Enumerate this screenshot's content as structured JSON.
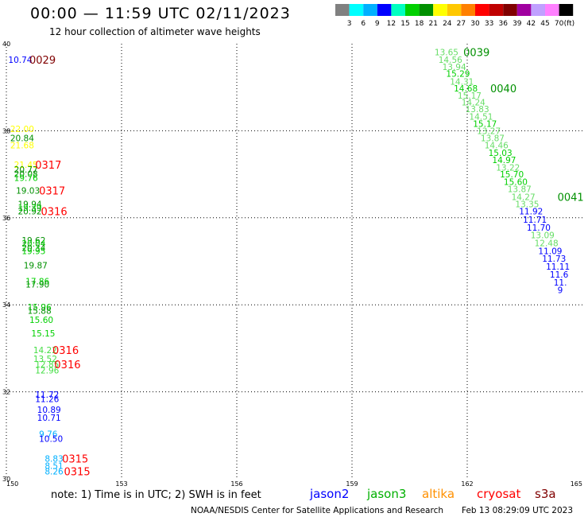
{
  "title": "00:00 — 11:59 UTC 02/11/2023",
  "subtitle": "12 hour collection of altimeter wave heights",
  "legend": {
    "unit": "(ft)",
    "colors": [
      "#808080",
      "#00ffff",
      "#00b0ff",
      "#0000ff",
      "#00ffc0",
      "#00d000",
      "#009000",
      "#ffff00",
      "#ffc800",
      "#ff8000",
      "#ff0000",
      "#c00000",
      "#800000",
      "#a000a0",
      "#c0a0ff",
      "#ff80ff",
      "#000000"
    ],
    "labels": [
      "3",
      "6",
      "9",
      "12",
      "15",
      "18",
      "21",
      "24",
      "27",
      "30",
      "33",
      "36",
      "39",
      "42",
      "45",
      "70"
    ]
  },
  "map": {
    "lon_min": 150,
    "lon_max": 165,
    "lat_min": 30,
    "lat_max": 40,
    "x_ticks": [
      "150",
      "153",
      "156",
      "159",
      "162",
      "165"
    ],
    "y_ticks": [
      "40",
      "38",
      "36",
      "34",
      "32",
      "30"
    ]
  },
  "observations": [
    {
      "t": "10.74",
      "lon": 150.05,
      "lat": 39.63,
      "c": "#0000ff"
    },
    {
      "t": "22.00",
      "lon": 150.1,
      "lat": 38.04,
      "c": "#ffff00"
    },
    {
      "t": "20.84",
      "lon": 150.1,
      "lat": 37.83,
      "c": "#009000"
    },
    {
      "t": "21.68",
      "lon": 150.1,
      "lat": 37.67,
      "c": "#ffff00"
    },
    {
      "t": "21.45",
      "lon": 150.2,
      "lat": 37.22,
      "c": "#ffff00"
    },
    {
      "t": "20.77",
      "lon": 150.2,
      "lat": 37.11,
      "c": "#009000"
    },
    {
      "t": "20.08",
      "lon": 150.2,
      "lat": 37.01,
      "c": "#009000"
    },
    {
      "t": "19.76",
      "lon": 150.2,
      "lat": 36.92,
      "c": "#00d000"
    },
    {
      "t": "19.03",
      "lon": 150.25,
      "lat": 36.63,
      "c": "#009000"
    },
    {
      "t": "19.94",
      "lon": 150.3,
      "lat": 36.32,
      "c": "#009000"
    },
    {
      "t": "19.39",
      "lon": 150.3,
      "lat": 36.23,
      "c": "#00d000"
    },
    {
      "t": "20.92",
      "lon": 150.3,
      "lat": 36.15,
      "c": "#009000"
    },
    {
      "t": "19.62",
      "lon": 150.4,
      "lat": 35.48,
      "c": "#009000"
    },
    {
      "t": "20.04",
      "lon": 150.4,
      "lat": 35.41,
      "c": "#00d000"
    },
    {
      "t": "20.34",
      "lon": 150.4,
      "lat": 35.31,
      "c": "#009000"
    },
    {
      "t": "19.95",
      "lon": 150.4,
      "lat": 35.24,
      "c": "#00d000"
    },
    {
      "t": "19.87",
      "lon": 150.45,
      "lat": 34.91,
      "c": "#009000"
    },
    {
      "t": "17.86",
      "lon": 150.5,
      "lat": 34.54,
      "c": "#00d000"
    },
    {
      "t": "17.90",
      "lon": 150.5,
      "lat": 34.47,
      "c": "#009000"
    },
    {
      "t": "15.96",
      "lon": 150.55,
      "lat": 33.95,
      "c": "#00d000"
    },
    {
      "t": "15.88",
      "lon": 150.55,
      "lat": 33.87,
      "c": "#009000"
    },
    {
      "t": "15.60",
      "lon": 150.6,
      "lat": 33.66,
      "c": "#00d000"
    },
    {
      "t": "15.15",
      "lon": 150.65,
      "lat": 33.35,
      "c": "#00d000"
    },
    {
      "t": "14.22",
      "lon": 150.7,
      "lat": 32.96,
      "c": "#44dd44"
    },
    {
      "t": "13.52",
      "lon": 150.7,
      "lat": 32.76,
      "c": "#44dd44"
    },
    {
      "t": "12.85",
      "lon": 150.75,
      "lat": 32.63,
      "c": "#44dd44"
    },
    {
      "t": "12.96",
      "lon": 150.75,
      "lat": 32.5,
      "c": "#44dd44"
    },
    {
      "t": "11.72",
      "lon": 150.75,
      "lat": 31.94,
      "c": "#0000ff"
    },
    {
      "t": "11.26",
      "lon": 150.75,
      "lat": 31.84,
      "c": "#0000ff"
    },
    {
      "t": "10.89",
      "lon": 150.8,
      "lat": 31.59,
      "c": "#0000ff"
    },
    {
      "t": "10.71",
      "lon": 150.8,
      "lat": 31.41,
      "c": "#0000ff"
    },
    {
      "t": "9.76",
      "lon": 150.85,
      "lat": 31.03,
      "c": "#00b0ff"
    },
    {
      "t": "10.50",
      "lon": 150.85,
      "lat": 30.92,
      "c": "#0000ff"
    },
    {
      "t": "8.83",
      "lon": 151.0,
      "lat": 30.47,
      "c": "#00b0ff"
    },
    {
      "t": "8.51",
      "lon": 151.0,
      "lat": 30.3,
      "c": "#00b0ff"
    },
    {
      "t": "8.26",
      "lon": 151.0,
      "lat": 30.17,
      "c": "#00b0ff"
    },
    {
      "t": "13.65",
      "lon": 161.15,
      "lat": 39.81,
      "c": "#66dd66"
    },
    {
      "t": "14.56",
      "lon": 161.25,
      "lat": 39.63,
      "c": "#66dd66"
    },
    {
      "t": "13.94",
      "lon": 161.35,
      "lat": 39.47,
      "c": "#66dd66"
    },
    {
      "t": "15.29",
      "lon": 161.45,
      "lat": 39.31,
      "c": "#00d000"
    },
    {
      "t": "14.31",
      "lon": 161.55,
      "lat": 39.13,
      "c": "#66dd66"
    },
    {
      "t": "14.68",
      "lon": 161.65,
      "lat": 38.98,
      "c": "#00d000"
    },
    {
      "t": "15.17",
      "lon": 161.75,
      "lat": 38.81,
      "c": "#66dd66"
    },
    {
      "t": "14.24",
      "lon": 161.85,
      "lat": 38.66,
      "c": "#66dd66"
    },
    {
      "t": "13.83",
      "lon": 161.95,
      "lat": 38.5,
      "c": "#66dd66"
    },
    {
      "t": "14.51",
      "lon": 162.05,
      "lat": 38.33,
      "c": "#66dd66"
    },
    {
      "t": "15.17",
      "lon": 162.15,
      "lat": 38.16,
      "c": "#00d000"
    },
    {
      "t": "13.27",
      "lon": 162.25,
      "lat": 38.0,
      "c": "#66dd66"
    },
    {
      "t": "13.87",
      "lon": 162.35,
      "lat": 37.83,
      "c": "#66dd66"
    },
    {
      "t": "14.46",
      "lon": 162.45,
      "lat": 37.67,
      "c": "#66dd66"
    },
    {
      "t": "15.03",
      "lon": 162.55,
      "lat": 37.5,
      "c": "#00d000"
    },
    {
      "t": "14.97",
      "lon": 162.65,
      "lat": 37.33,
      "c": "#00d000"
    },
    {
      "t": "13.22",
      "lon": 162.75,
      "lat": 37.16,
      "c": "#66dd66"
    },
    {
      "t": "15.70",
      "lon": 162.85,
      "lat": 37.0,
      "c": "#00d000"
    },
    {
      "t": "15.60",
      "lon": 162.95,
      "lat": 36.83,
      "c": "#00d000"
    },
    {
      "t": "13.87",
      "lon": 163.05,
      "lat": 36.66,
      "c": "#66dd66"
    },
    {
      "t": "14.27",
      "lon": 163.15,
      "lat": 36.48,
      "c": "#66dd66"
    },
    {
      "t": "13.35",
      "lon": 163.25,
      "lat": 36.32,
      "c": "#66dd66"
    },
    {
      "t": "11.92",
      "lon": 163.35,
      "lat": 36.15,
      "c": "#0000ff"
    },
    {
      "t": "11.71",
      "lon": 163.45,
      "lat": 35.96,
      "c": "#0000ff"
    },
    {
      "t": "11.70",
      "lon": 163.55,
      "lat": 35.78,
      "c": "#0000ff"
    },
    {
      "t": "13.09",
      "lon": 163.65,
      "lat": 35.6,
      "c": "#66dd66"
    },
    {
      "t": "12.48",
      "lon": 163.75,
      "lat": 35.42,
      "c": "#66dd66"
    },
    {
      "t": "11.09",
      "lon": 163.85,
      "lat": 35.24,
      "c": "#0000ff"
    },
    {
      "t": "11.73",
      "lon": 163.95,
      "lat": 35.06,
      "c": "#0000ff"
    },
    {
      "t": "11.11",
      "lon": 164.05,
      "lat": 34.88,
      "c": "#0000ff"
    },
    {
      "t": "11.6",
      "lon": 164.15,
      "lat": 34.7,
      "c": "#0000ff"
    },
    {
      "t": "11.",
      "lon": 164.25,
      "lat": 34.52,
      "c": "#0000ff"
    },
    {
      "t": "9",
      "lon": 164.35,
      "lat": 34.34,
      "c": "#0000ff"
    }
  ],
  "time_labels": [
    {
      "t": "0029",
      "lon": 150.6,
      "lat": 39.63,
      "c": "#800000"
    },
    {
      "t": "0317",
      "lon": 150.75,
      "lat": 37.22,
      "c": "#ff0000"
    },
    {
      "t": "0317",
      "lon": 150.85,
      "lat": 36.63,
      "c": "#ff0000"
    },
    {
      "t": "0316",
      "lon": 150.9,
      "lat": 36.15,
      "c": "#ff0000"
    },
    {
      "t": "0316",
      "lon": 151.2,
      "lat": 32.96,
      "c": "#ff0000"
    },
    {
      "t": "0316",
      "lon": 151.25,
      "lat": 32.63,
      "c": "#ff0000"
    },
    {
      "t": "0315",
      "lon": 151.45,
      "lat": 30.47,
      "c": "#ff0000"
    },
    {
      "t": "0315",
      "lon": 151.5,
      "lat": 30.17,
      "c": "#ff0000"
    },
    {
      "t": "0039",
      "lon": 161.9,
      "lat": 39.81,
      "c": "#009000"
    },
    {
      "t": "0040",
      "lon": 162.6,
      "lat": 38.98,
      "c": "#009000"
    },
    {
      "t": "0041",
      "lon": 164.35,
      "lat": 36.48,
      "c": "#009000"
    }
  ],
  "footer": {
    "note": "note: 1) Time is in UTC; 2) SWH is in feet",
    "satellites": [
      {
        "name": "jason2",
        "color": "#0000ff"
      },
      {
        "name": "jason3",
        "color": "#00b000"
      },
      {
        "name": "altika",
        "color": "#ff9000"
      },
      {
        "name": "cryosat",
        "color": "#ff0000"
      },
      {
        "name": "s3a",
        "color": "#800000"
      }
    ],
    "credit": "NOAA/NESDIS Center for Satellite Applications and Research",
    "timestamp": "Feb 13 08:29:09 UTC 2023"
  }
}
